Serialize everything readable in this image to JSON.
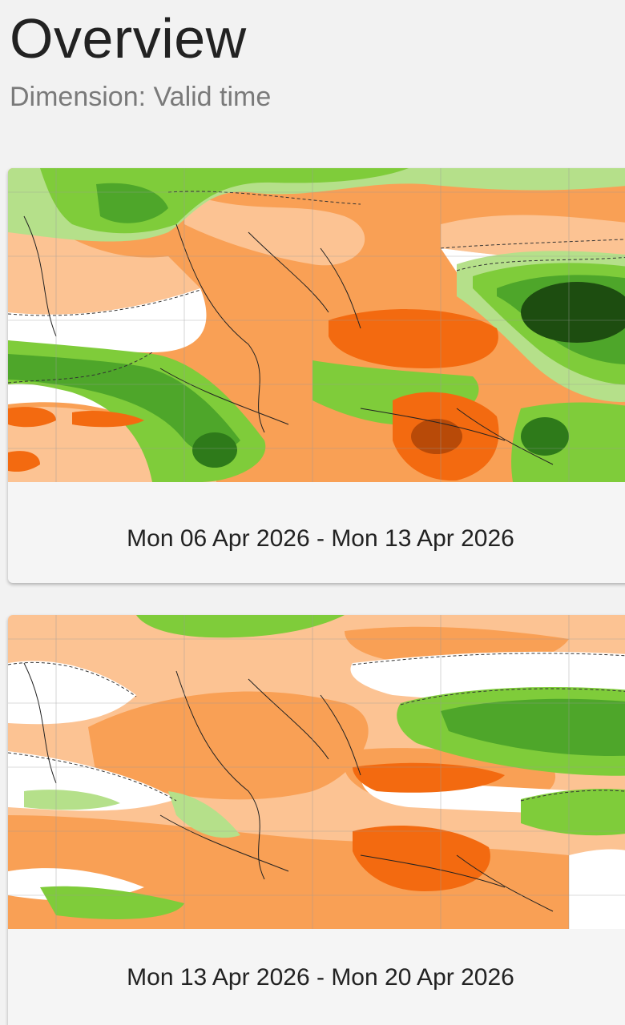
{
  "header": {
    "title": "Overview",
    "subtitle": "Dimension: Valid time"
  },
  "colors": {
    "background": "#f2f2f2",
    "orange_light": "#fcc393",
    "orange": "#f9a055",
    "orange_dark": "#f36a10",
    "orange_darkest": "#b84a08",
    "green_light": "#b5e08a",
    "green": "#7fcc3a",
    "green_mid": "#4ea62a",
    "green_dark": "#2e7a1a",
    "green_darkest": "#1d4d10"
  },
  "cards": [
    {
      "label": "Mon 06 Apr 2026 - Mon 13 Apr 2026",
      "icon": "anomaly-map-icon"
    },
    {
      "label": "Mon 13 Apr 2026 - Mon 20 Apr 2026",
      "icon": "anomaly-map-icon"
    }
  ]
}
